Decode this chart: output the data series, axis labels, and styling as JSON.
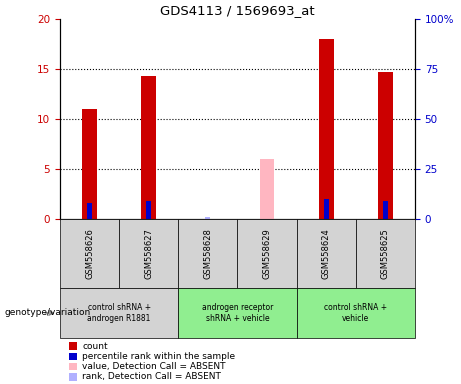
{
  "title": "GDS4113 / 1569693_at",
  "samples": [
    "GSM558626",
    "GSM558627",
    "GSM558628",
    "GSM558629",
    "GSM558624",
    "GSM558625"
  ],
  "count_values": [
    11,
    14.3,
    null,
    null,
    18,
    14.7
  ],
  "rank_values": [
    8.0,
    8.8,
    null,
    null,
    9.9,
    8.8
  ],
  "absent_value_values": [
    null,
    null,
    null,
    6.0,
    null,
    null
  ],
  "absent_rank_values": [
    null,
    null,
    0.7,
    null,
    null,
    null
  ],
  "ylim_left": [
    0,
    20
  ],
  "ylim_right": [
    0,
    100
  ],
  "yticks_left": [
    0,
    5,
    10,
    15,
    20
  ],
  "yticks_right": [
    0,
    25,
    50,
    75,
    100
  ],
  "yticklabels_left": [
    "0",
    "5",
    "10",
    "15",
    "20"
  ],
  "yticklabels_right": [
    "0",
    "25",
    "50",
    "75",
    "100%"
  ],
  "count_color": "#cc0000",
  "rank_color": "#0000cc",
  "absent_value_color": "#ffb6c1",
  "absent_rank_color": "#b0b0ff",
  "sample_cell_bg": "#d3d3d3",
  "group_spans": [
    {
      "start": 0,
      "end": 1,
      "label": "control shRNA +\nandrogen R1881",
      "color": "#d3d3d3"
    },
    {
      "start": 2,
      "end": 3,
      "label": "androgen receptor\nshRNA + vehicle",
      "color": "#90EE90"
    },
    {
      "start": 4,
      "end": 5,
      "label": "control shRNA +\nvehicle",
      "color": "#90EE90"
    }
  ],
  "legend_items": [
    {
      "color": "#cc0000",
      "label": "count"
    },
    {
      "color": "#0000cc",
      "label": "percentile rank within the sample"
    },
    {
      "color": "#ffb6c1",
      "label": "value, Detection Call = ABSENT"
    },
    {
      "color": "#b0b0ff",
      "label": "rank, Detection Call = ABSENT"
    }
  ],
  "annotation_label": "genotype/variation"
}
